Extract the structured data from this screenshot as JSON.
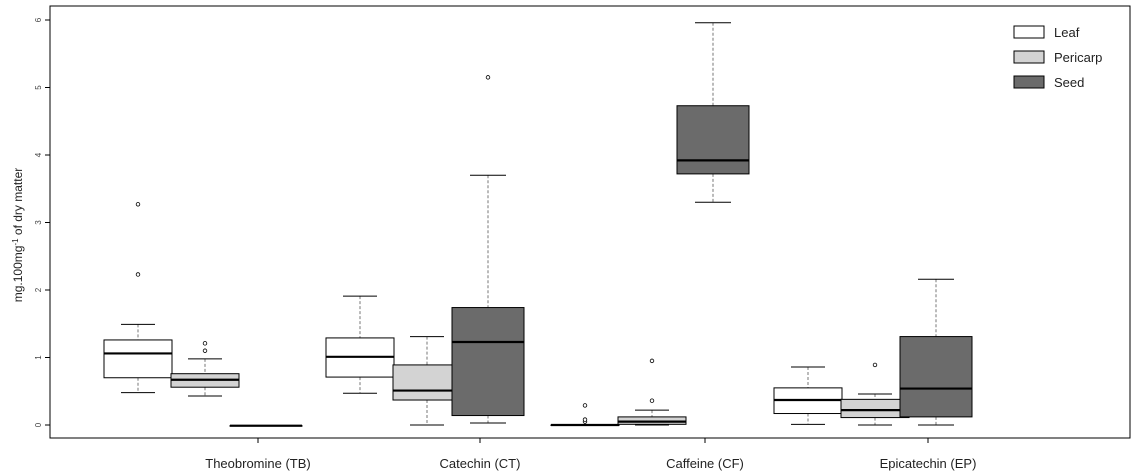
{
  "chart_data": {
    "type": "boxplot",
    "title": "",
    "xlabel": "",
    "ylabel_main": "mg.100mg",
    "ylabel_sup": "-1",
    "ylabel_rest": " of dry matter",
    "ylim": [
      0,
      6
    ],
    "yticks": [
      0,
      1,
      2,
      3,
      4,
      5,
      6
    ],
    "categories": [
      "Theobromine (TB)",
      "Catechin (CT)",
      "Caffeine (CF)",
      "Epicatechin (EP)"
    ],
    "legend_position": "top-right",
    "series": [
      {
        "name": "Leaf",
        "color": "#ffffff",
        "boxes": [
          {
            "whisker_low": 0.48,
            "q1": 0.7,
            "median": 1.06,
            "q3": 1.26,
            "whisker_high": 1.49,
            "outliers": [
              2.23,
              3.27
            ]
          },
          {
            "whisker_low": 0.47,
            "q1": 0.71,
            "median": 1.01,
            "q3": 1.29,
            "whisker_high": 1.91,
            "outliers": []
          },
          {
            "whisker_low": 0.0,
            "q1": 0.0,
            "median": 0.0,
            "q3": 0.0,
            "whisker_high": 0.0,
            "outliers": [
              0.05,
              0.08,
              0.29
            ]
          },
          {
            "whisker_low": 0.01,
            "q1": 0.17,
            "median": 0.37,
            "q3": 0.55,
            "whisker_high": 0.86,
            "outliers": []
          }
        ]
      },
      {
        "name": "Pericarp",
        "color": "#d3d3d3",
        "boxes": [
          {
            "whisker_low": 0.43,
            "q1": 0.56,
            "median": 0.67,
            "q3": 0.76,
            "whisker_high": 0.98,
            "outliers": [
              1.1,
              1.21
            ]
          },
          {
            "whisker_low": 0.0,
            "q1": 0.37,
            "median": 0.51,
            "q3": 0.89,
            "whisker_high": 1.31,
            "outliers": []
          },
          {
            "whisker_low": 0.0,
            "q1": 0.01,
            "median": 0.05,
            "q3": 0.12,
            "whisker_high": 0.22,
            "outliers": [
              0.36,
              0.95
            ]
          },
          {
            "whisker_low": 0.0,
            "q1": 0.11,
            "median": 0.22,
            "q3": 0.38,
            "whisker_high": 0.46,
            "outliers": [
              0.89
            ]
          }
        ]
      },
      {
        "name": "Seed",
        "color": "#6b6b6b",
        "boxes": [
          {
            "whisker_low": -0.01,
            "q1": -0.01,
            "median": -0.01,
            "q3": -0.01,
            "whisker_high": -0.01,
            "outliers": []
          },
          {
            "whisker_low": 0.03,
            "q1": 0.14,
            "median": 1.23,
            "q3": 1.74,
            "whisker_high": 3.7,
            "outliers": [
              5.15
            ]
          },
          {
            "whisker_low": 3.3,
            "q1": 3.72,
            "median": 3.92,
            "q3": 4.73,
            "whisker_high": 5.96,
            "outliers": []
          },
          {
            "whisker_low": 0.0,
            "q1": 0.12,
            "median": 0.54,
            "q3": 1.31,
            "whisker_high": 2.16,
            "outliers": []
          }
        ]
      }
    ]
  }
}
